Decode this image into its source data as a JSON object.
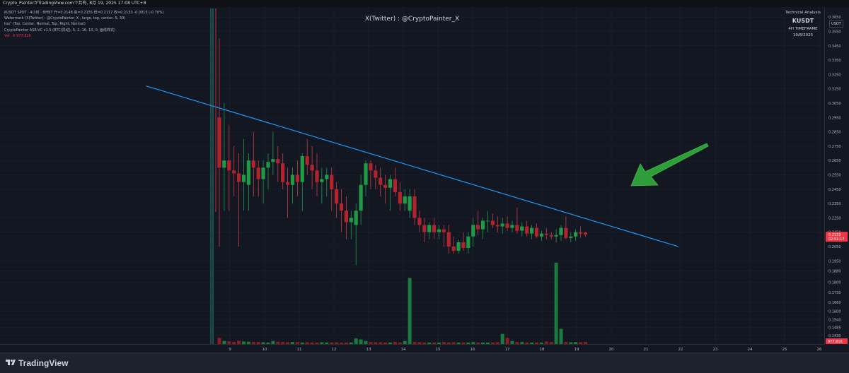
{
  "header": {
    "title": "Crypto_PainterがTradingView.comで共有, 8月 19, 2025 17:08 UTC+8"
  },
  "legend": {
    "line1": "KUSDT SPOT · 4小时 · BYBIT  开=0.2148  高=0.2155  低=0.2117  收=0.2133  -0.0015 (-0.70%)",
    "line2": "Watermark (X(Twitter) : @CryptoPainter_X , large, top, center, 5, 30)",
    "line3": "too\" (Top, Center, Normal, Top, Right, Normal)",
    "line4": "CryptoPainter ASR-VC v1.5 (BTC(异动), 5, 2, 16, 10, 0, 画线样式)",
    "line5": "Vol · K   977.81K"
  },
  "watermark": {
    "text": "X(Twitter) : @CryptoPainter_X"
  },
  "info_box": {
    "title": "Technical Analysis",
    "symbol": "KUSDT",
    "timeframe": "4H TIMEFRAME",
    "date": "19/8/2025"
  },
  "symbol_tag": "USDT",
  "price_tag": {
    "value": "0.2133",
    "countdown": "02:51:17"
  },
  "volume_tag": "977.81K",
  "footer": {
    "brand": "TradingView"
  },
  "colors": {
    "background": "#131722",
    "up": "#26a69a",
    "up_body": "#089981",
    "down": "#f23645",
    "down_body": "#b2242d",
    "trendline": "#2196f3",
    "arrow": "#2e9d3a"
  },
  "chart_data": {
    "type": "candlestick",
    "symbol": "KUSDT",
    "timeframe": "4H",
    "price_axis": {
      "ylim": [
        0.137,
        0.372
      ],
      "ticks": [
        "0.3650",
        "0.3550",
        "0.3450",
        "0.3350",
        "0.3250",
        "0.3150",
        "0.3050",
        "0.2950",
        "0.2850",
        "0.2750",
        "0.2650",
        "0.2550",
        "0.2450",
        "0.2350",
        "0.2250",
        "0.2150",
        "0.2050",
        "0.1950",
        "0.1880",
        "0.1800",
        "0.1730",
        "0.1660",
        "0.1600",
        "0.1540",
        "0.1485",
        "0.1430"
      ]
    },
    "time_axis": {
      "ticks": [
        "9",
        "10",
        "11",
        "12",
        "13",
        "14",
        "15",
        "16",
        "17",
        "18",
        "19",
        "20",
        "21",
        "22",
        "23",
        "24",
        "25",
        "26"
      ]
    },
    "candles": [
      {
        "o": 0.295,
        "h": 0.35,
        "l": 0.205,
        "c": 0.26
      },
      {
        "o": 0.26,
        "h": 0.305,
        "l": 0.23,
        "c": 0.265
      },
      {
        "o": 0.265,
        "h": 0.29,
        "l": 0.23,
        "c": 0.258
      },
      {
        "o": 0.258,
        "h": 0.275,
        "l": 0.24,
        "c": 0.256
      },
      {
        "o": 0.256,
        "h": 0.27,
        "l": 0.205,
        "c": 0.25
      },
      {
        "o": 0.25,
        "h": 0.28,
        "l": 0.23,
        "c": 0.255
      },
      {
        "o": 0.248,
        "h": 0.27,
        "l": 0.23,
        "c": 0.265
      },
      {
        "o": 0.265,
        "h": 0.285,
        "l": 0.24,
        "c": 0.26
      },
      {
        "o": 0.26,
        "h": 0.265,
        "l": 0.24,
        "c": 0.252
      },
      {
        "o": 0.252,
        "h": 0.265,
        "l": 0.235,
        "c": 0.26
      },
      {
        "o": 0.26,
        "h": 0.27,
        "l": 0.245,
        "c": 0.264
      },
      {
        "o": 0.264,
        "h": 0.285,
        "l": 0.255,
        "c": 0.266
      },
      {
        "o": 0.266,
        "h": 0.275,
        "l": 0.25,
        "c": 0.263
      },
      {
        "o": 0.263,
        "h": 0.27,
        "l": 0.245,
        "c": 0.25
      },
      {
        "o": 0.25,
        "h": 0.26,
        "l": 0.225,
        "c": 0.248
      },
      {
        "o": 0.248,
        "h": 0.26,
        "l": 0.235,
        "c": 0.255
      },
      {
        "o": 0.255,
        "h": 0.265,
        "l": 0.24,
        "c": 0.25
      },
      {
        "o": 0.25,
        "h": 0.27,
        "l": 0.23,
        "c": 0.268
      },
      {
        "o": 0.268,
        "h": 0.28,
        "l": 0.255,
        "c": 0.262
      },
      {
        "o": 0.262,
        "h": 0.275,
        "l": 0.245,
        "c": 0.258
      },
      {
        "o": 0.258,
        "h": 0.27,
        "l": 0.24,
        "c": 0.25
      },
      {
        "o": 0.25,
        "h": 0.26,
        "l": 0.235,
        "c": 0.252
      },
      {
        "o": 0.252,
        "h": 0.26,
        "l": 0.24,
        "c": 0.255
      },
      {
        "o": 0.255,
        "h": 0.26,
        "l": 0.23,
        "c": 0.245
      },
      {
        "o": 0.245,
        "h": 0.25,
        "l": 0.225,
        "c": 0.235
      },
      {
        "o": 0.235,
        "h": 0.245,
        "l": 0.215,
        "c": 0.23
      },
      {
        "o": 0.23,
        "h": 0.24,
        "l": 0.21,
        "c": 0.222
      },
      {
        "o": 0.222,
        "h": 0.23,
        "l": 0.21,
        "c": 0.225
      },
      {
        "o": 0.22,
        "h": 0.235,
        "l": 0.192,
        "c": 0.23
      },
      {
        "o": 0.23,
        "h": 0.255,
        "l": 0.22,
        "c": 0.248
      },
      {
        "o": 0.248,
        "h": 0.265,
        "l": 0.24,
        "c": 0.263
      },
      {
        "o": 0.263,
        "h": 0.265,
        "l": 0.245,
        "c": 0.258
      },
      {
        "o": 0.258,
        "h": 0.262,
        "l": 0.245,
        "c": 0.253
      },
      {
        "o": 0.253,
        "h": 0.26,
        "l": 0.24,
        "c": 0.248
      },
      {
        "o": 0.248,
        "h": 0.255,
        "l": 0.235,
        "c": 0.246
      },
      {
        "o": 0.246,
        "h": 0.255,
        "l": 0.23,
        "c": 0.252
      },
      {
        "o": 0.252,
        "h": 0.26,
        "l": 0.24,
        "c": 0.243
      },
      {
        "o": 0.243,
        "h": 0.25,
        "l": 0.23,
        "c": 0.235
      },
      {
        "o": 0.235,
        "h": 0.245,
        "l": 0.23,
        "c": 0.24
      },
      {
        "o": 0.23,
        "h": 0.245,
        "l": 0.225,
        "c": 0.24
      },
      {
        "o": 0.24,
        "h": 0.245,
        "l": 0.22,
        "c": 0.225
      },
      {
        "o": 0.225,
        "h": 0.23,
        "l": 0.215,
        "c": 0.22
      },
      {
        "o": 0.22,
        "h": 0.225,
        "l": 0.208,
        "c": 0.215
      },
      {
        "o": 0.215,
        "h": 0.222,
        "l": 0.21,
        "c": 0.22
      },
      {
        "o": 0.22,
        "h": 0.225,
        "l": 0.21,
        "c": 0.215
      },
      {
        "o": 0.215,
        "h": 0.22,
        "l": 0.21,
        "c": 0.217
      },
      {
        "o": 0.217,
        "h": 0.22,
        "l": 0.205,
        "c": 0.215
      },
      {
        "o": 0.215,
        "h": 0.22,
        "l": 0.2,
        "c": 0.205
      },
      {
        "o": 0.205,
        "h": 0.212,
        "l": 0.2,
        "c": 0.202
      },
      {
        "o": 0.202,
        "h": 0.21,
        "l": 0.2,
        "c": 0.208
      },
      {
        "o": 0.208,
        "h": 0.215,
        "l": 0.202,
        "c": 0.204
      },
      {
        "o": 0.204,
        "h": 0.215,
        "l": 0.2,
        "c": 0.212
      },
      {
        "o": 0.212,
        "h": 0.225,
        "l": 0.205,
        "c": 0.22
      },
      {
        "o": 0.22,
        "h": 0.23,
        "l": 0.213,
        "c": 0.217
      },
      {
        "o": 0.217,
        "h": 0.225,
        "l": 0.21,
        "c": 0.223
      },
      {
        "o": 0.223,
        "h": 0.23,
        "l": 0.215,
        "c": 0.223
      },
      {
        "o": 0.223,
        "h": 0.228,
        "l": 0.218,
        "c": 0.22
      },
      {
        "o": 0.22,
        "h": 0.226,
        "l": 0.215,
        "c": 0.219
      },
      {
        "o": 0.219,
        "h": 0.225,
        "l": 0.214,
        "c": 0.221
      },
      {
        "o": 0.221,
        "h": 0.226,
        "l": 0.216,
        "c": 0.218
      },
      {
        "o": 0.218,
        "h": 0.223,
        "l": 0.215,
        "c": 0.22
      },
      {
        "o": 0.22,
        "h": 0.232,
        "l": 0.214,
        "c": 0.216
      },
      {
        "o": 0.216,
        "h": 0.222,
        "l": 0.212,
        "c": 0.219
      },
      {
        "o": 0.219,
        "h": 0.223,
        "l": 0.212,
        "c": 0.214
      },
      {
        "o": 0.214,
        "h": 0.22,
        "l": 0.21,
        "c": 0.218
      },
      {
        "o": 0.218,
        "h": 0.221,
        "l": 0.211,
        "c": 0.212
      },
      {
        "o": 0.212,
        "h": 0.216,
        "l": 0.209,
        "c": 0.214
      },
      {
        "o": 0.214,
        "h": 0.218,
        "l": 0.21,
        "c": 0.213
      },
      {
        "o": 0.213,
        "h": 0.215,
        "l": 0.21,
        "c": 0.212
      },
      {
        "o": 0.212,
        "h": 0.217,
        "l": 0.208,
        "c": 0.213
      },
      {
        "o": 0.213,
        "h": 0.22,
        "l": 0.209,
        "c": 0.218
      },
      {
        "o": 0.218,
        "h": 0.226,
        "l": 0.21,
        "c": 0.211
      },
      {
        "o": 0.211,
        "h": 0.215,
        "l": 0.208,
        "c": 0.212
      },
      {
        "o": 0.212,
        "h": 0.217,
        "l": 0.209,
        "c": 0.215
      },
      {
        "o": 0.215,
        "h": 0.219,
        "l": 0.211,
        "c": 0.214
      },
      {
        "o": 0.2148,
        "h": 0.2155,
        "l": 0.2117,
        "c": 0.2133
      }
    ],
    "volume": [
      120,
      60,
      55,
      40,
      65,
      50,
      45,
      40,
      40,
      35,
      30,
      60,
      45,
      40,
      35,
      40,
      40,
      30,
      35,
      30,
      30,
      35,
      30,
      30,
      35,
      25,
      30,
      30,
      110,
      90,
      60,
      40,
      35,
      35,
      30,
      30,
      40,
      30,
      60,
      1300,
      40,
      35,
      30,
      30,
      30,
      30,
      40,
      30,
      35,
      30,
      30,
      30,
      40,
      30,
      30,
      30,
      30,
      35,
      200,
      120,
      60,
      40,
      40,
      30,
      30,
      30,
      30,
      50,
      40,
      1600,
      300,
      40,
      35,
      40,
      35,
      40
    ],
    "trendline": {
      "from": {
        "i": -15,
        "price": 0.317
      },
      "to": {
        "i": 94,
        "price": 0.205
      }
    },
    "current_price": 0.2133
  }
}
